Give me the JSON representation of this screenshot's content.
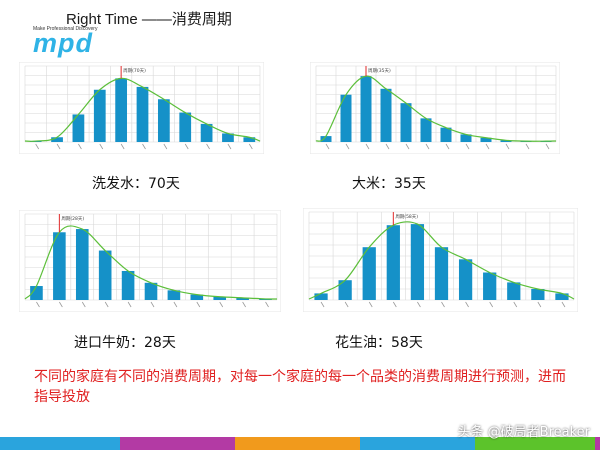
{
  "header": {
    "title": "Right Time ——消费周期"
  },
  "logo": {
    "tagline": "Make Professional Discovery",
    "text": "mpd"
  },
  "colors": {
    "bar": "#1591c8",
    "curve": "#5cbf3a",
    "marker": "#e02a2a",
    "grid": "#d8d8d8",
    "note": "#e02020"
  },
  "footer_colors": [
    "#2aa4dd",
    "#b33aa4",
    "#f19a1c",
    "#2aa4dd",
    "#5cc32b",
    "#b33aa4"
  ],
  "captions": {
    "shampoo": "洗发水：70天",
    "rice": "大米：35天",
    "formula": "进口牛奶：28天",
    "oil": "花生油：58天"
  },
  "note": "不同的家庭有不同的消费周期，对每一个家庭的每一个品类的消费周期进行预测，进而指导投放",
  "watermark": "头条 @破局者Breaker",
  "chart_data": [
    {
      "type": "bar",
      "name": "shampoo",
      "values": [
        1,
        5,
        29,
        55,
        67,
        58,
        45,
        31,
        19,
        9,
        5
      ],
      "ylim": [
        0,
        80
      ],
      "marker": {
        "bar_index": 4,
        "label": "周期(70天)"
      },
      "grid": true
    },
    {
      "type": "bar",
      "name": "rice",
      "values": [
        7,
        56,
        78,
        63,
        46,
        28,
        17,
        9,
        5,
        2,
        1,
        1
      ],
      "ylim": [
        0,
        90
      ],
      "marker": {
        "bar_index": 2,
        "label": "周期(35天)"
      },
      "grid": true
    },
    {
      "type": "bar",
      "name": "formula",
      "values": [
        13,
        63,
        66,
        46,
        27,
        16,
        9,
        5,
        3,
        2,
        1
      ],
      "ylim": [
        0,
        80
      ],
      "marker": {
        "bar_index": 1,
        "label": "周期(28天)"
      },
      "grid": true
    },
    {
      "type": "bar",
      "name": "oil",
      "values": [
        6,
        18,
        48,
        68,
        69,
        48,
        37,
        25,
        16,
        10,
        6
      ],
      "ylim": [
        0,
        80
      ],
      "marker": {
        "bar_index": 3,
        "label": "周期(58天)"
      },
      "grid": true
    }
  ]
}
